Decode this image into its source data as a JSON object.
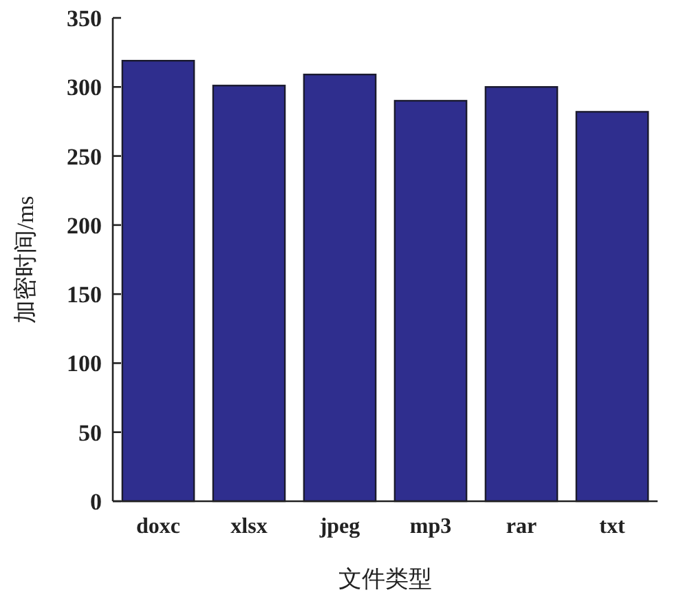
{
  "chart_data": {
    "type": "bar",
    "xlabel": "文件类型",
    "ylabel": "加密时间/ms",
    "categories": [
      "doxc",
      "xlsx",
      "jpeg",
      "mp3",
      "rar",
      "txt"
    ],
    "values": [
      319,
      301,
      309,
      290,
      300,
      282
    ],
    "color": "#2f2e8e",
    "ylim": [
      0,
      350
    ],
    "yticks": [
      0,
      50,
      100,
      150,
      200,
      250,
      300,
      350
    ],
    "grid": false
  }
}
